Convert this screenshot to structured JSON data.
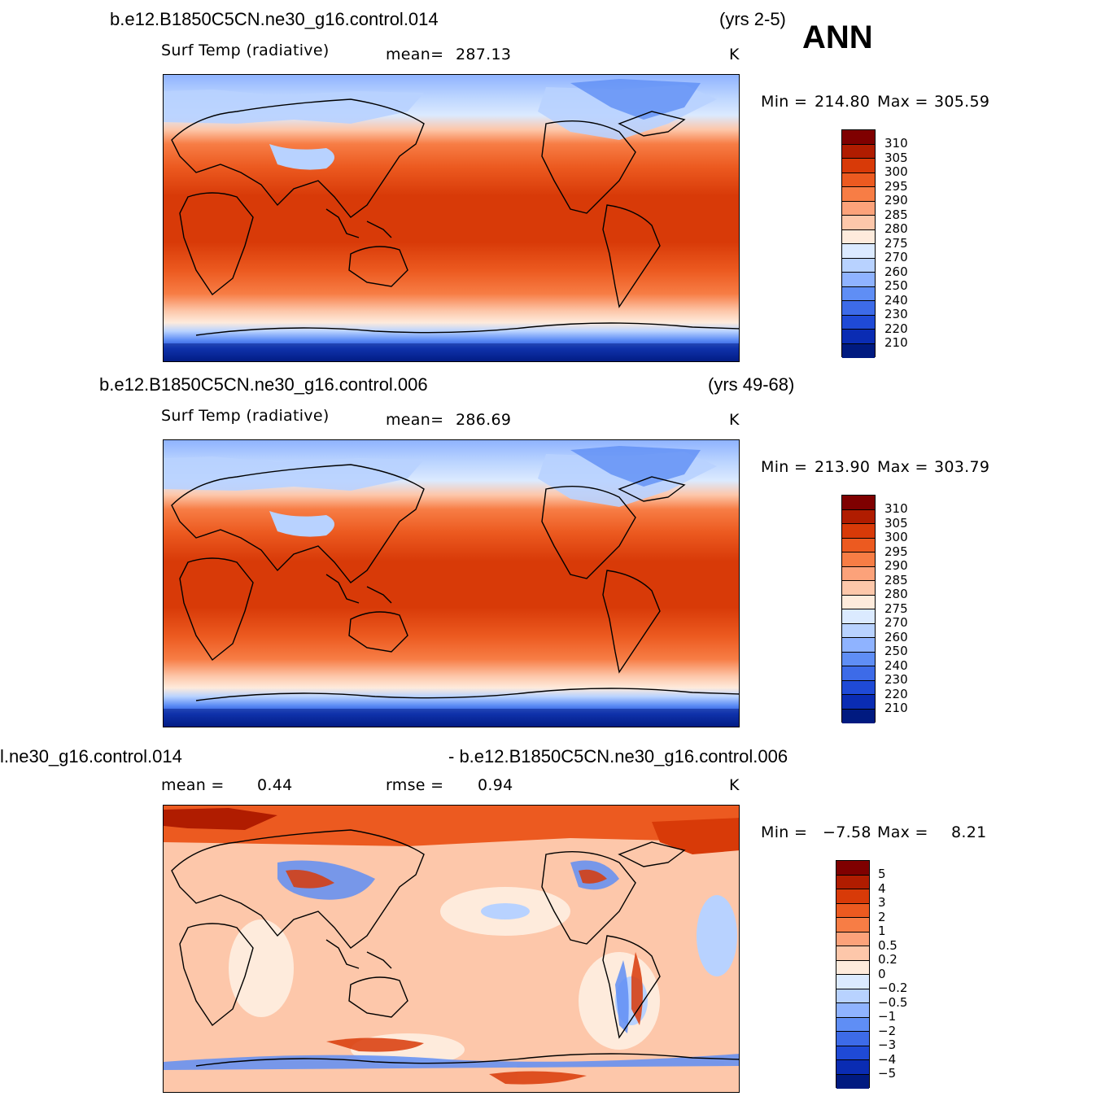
{
  "season": "ANN",
  "units": "K",
  "panels": [
    {
      "case": "b.e12.B1850C5CN.ne30_g16.control.014",
      "years": "(yrs 2-5)",
      "variable": "Surf Temp (radiative)",
      "stat1_label": "mean=",
      "stat1_value": "287.13",
      "stat2_label": "",
      "stat2_value": "",
      "min_label": "Min =",
      "min_value": "214.80",
      "max_label": "Max =",
      "max_value": "305.59"
    },
    {
      "case": "b.e12.B1850C5CN.ne30_g16.control.006",
      "years": "(yrs 49-68)",
      "variable": "Surf Temp (radiative)",
      "stat1_label": "mean=",
      "stat1_value": "286.69",
      "stat2_label": "",
      "stat2_value": "",
      "min_label": "Min =",
      "min_value": "213.90",
      "max_label": "Max =",
      "max_value": "303.79"
    },
    {
      "case": "l.ne30_g16.control.014",
      "years": "- b.e12.B1850C5CN.ne30_g16.control.006",
      "variable": "",
      "stat1_label": "mean =",
      "stat1_value": "0.44",
      "stat2_label": "rmse =",
      "stat2_value": "0.94",
      "min_label": "Min =",
      "min_value": "−7.58",
      "max_label": "Max =",
      "max_value": "8.21"
    }
  ],
  "colorbars": {
    "abs_labels": [
      "310",
      "305",
      "300",
      "295",
      "290",
      "285",
      "280",
      "275",
      "270",
      "260",
      "250",
      "240",
      "230",
      "220",
      "210"
    ],
    "abs_colors": [
      "#7f0000",
      "#b01c00",
      "#d83a08",
      "#ec5a20",
      "#f77d45",
      "#fca27a",
      "#fdc7aa",
      "#feebdc",
      "#dbeaff",
      "#b8d2ff",
      "#8fb3ff",
      "#5f8ef5",
      "#3d6be8",
      "#1f4ad6",
      "#0a2cb3",
      "#001a80"
    ],
    "diff_labels": [
      "5",
      "4",
      "3",
      "2",
      "1",
      "0.5",
      "0.2",
      "0",
      "−0.2",
      "−0.5",
      "−1",
      "−2",
      "−3",
      "−4",
      "−5"
    ],
    "diff_colors": [
      "#7f0000",
      "#b01c00",
      "#d83a08",
      "#ec5a20",
      "#f77d45",
      "#fca27a",
      "#fdc7aa",
      "#feebdc",
      "#dbeaff",
      "#b8d2ff",
      "#8fb3ff",
      "#5f8ef5",
      "#3d6be8",
      "#1f4ad6",
      "#0a2cb3",
      "#001a80"
    ]
  },
  "chart_data": [
    {
      "type": "heatmap",
      "title": "b.e12.B1850C5CN.ne30_g16.control.014",
      "variable": "Surf Temp (radiative)",
      "units": "K",
      "mean": 287.13,
      "min": 214.8,
      "max": 305.59,
      "contour_levels": [
        210,
        220,
        230,
        240,
        250,
        260,
        270,
        275,
        280,
        285,
        290,
        295,
        300,
        305,
        310
      ]
    },
    {
      "type": "heatmap",
      "title": "b.e12.B1850C5CN.ne30_g16.control.006",
      "variable": "Surf Temp (radiative)",
      "units": "K",
      "mean": 286.69,
      "min": 213.9,
      "max": 303.79,
      "contour_levels": [
        210,
        220,
        230,
        240,
        250,
        260,
        270,
        275,
        280,
        285,
        290,
        295,
        300,
        305,
        310
      ]
    },
    {
      "type": "heatmap",
      "title": "- b.e12.B1850C5CN.ne30_g16.control.006",
      "units": "K",
      "mean": 0.44,
      "rmse": 0.94,
      "min": -7.58,
      "max": 8.21,
      "contour_levels": [
        -5,
        -4,
        -3,
        -2,
        -1,
        -0.5,
        -0.2,
        0,
        0.2,
        0.5,
        1,
        2,
        3,
        4,
        5
      ]
    }
  ]
}
